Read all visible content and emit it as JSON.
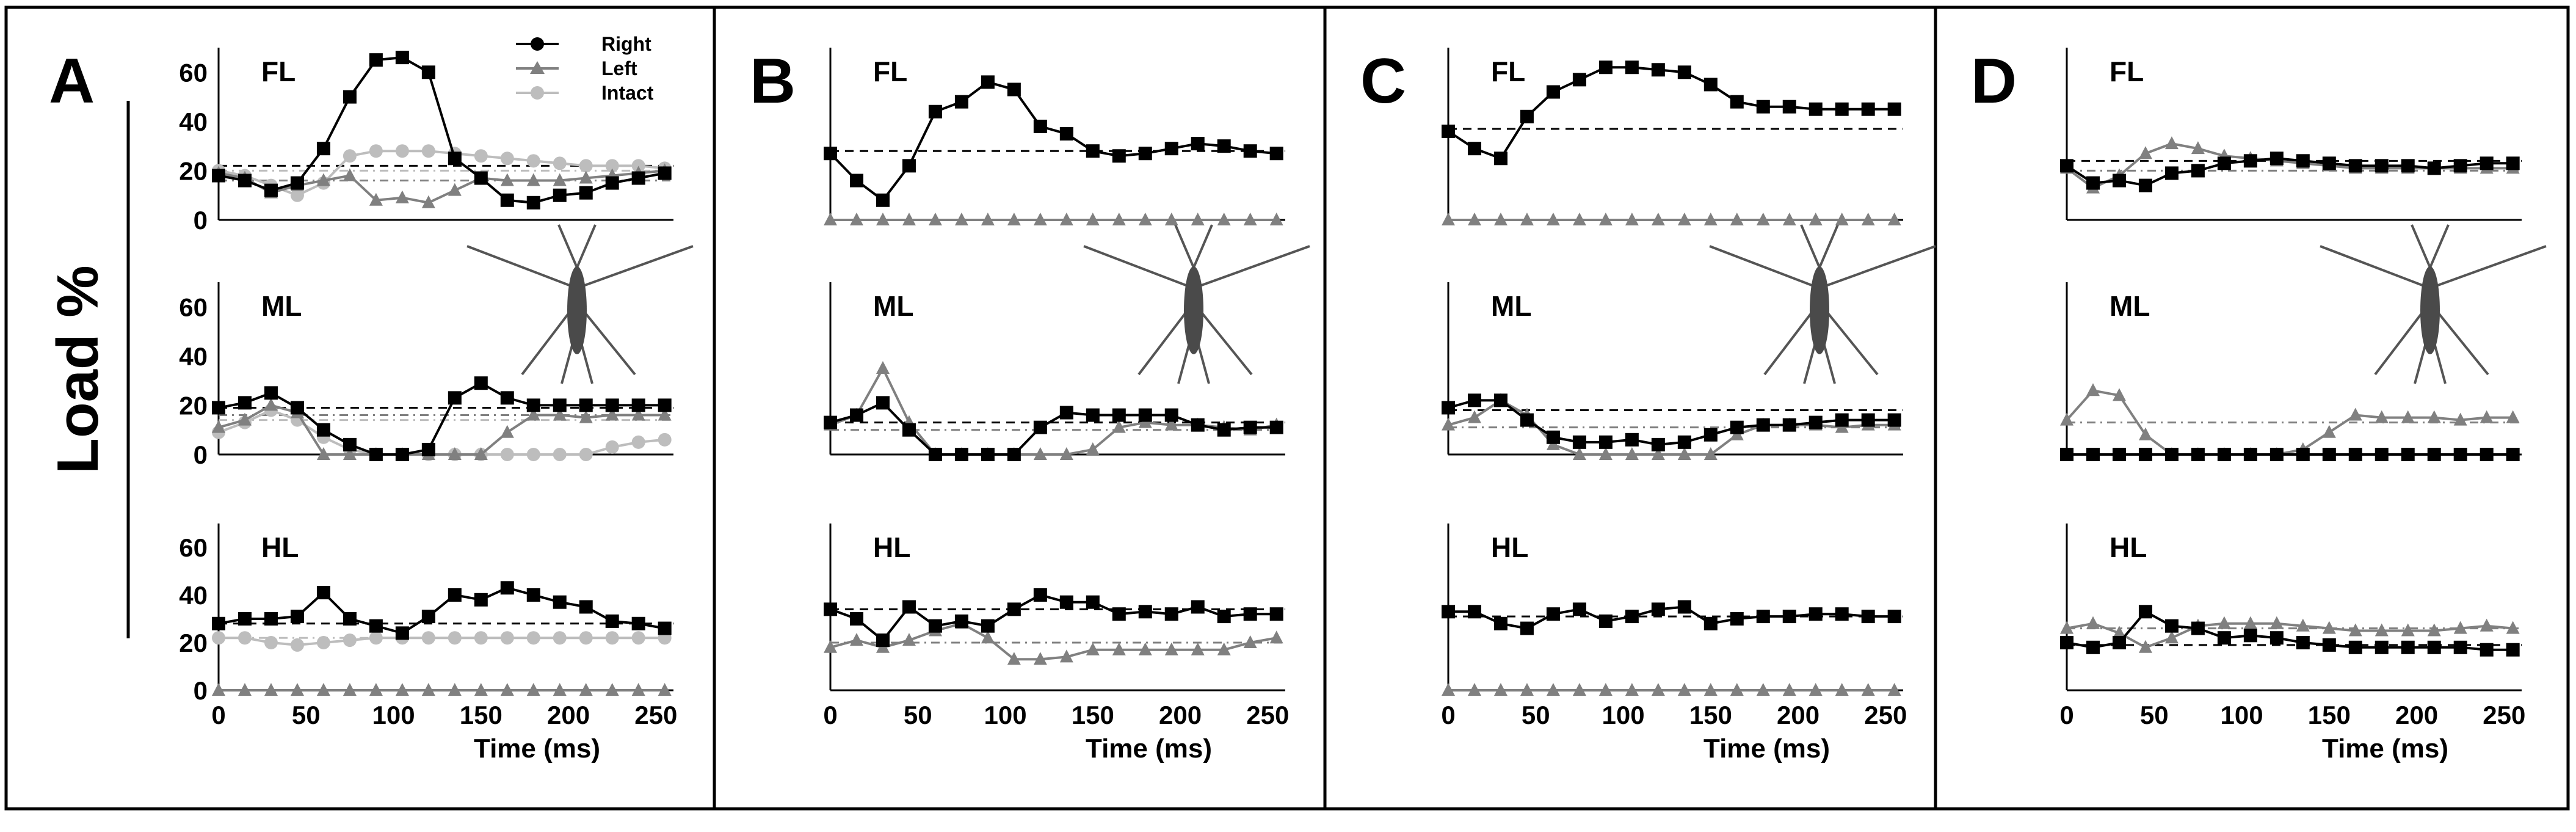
{
  "figure": {
    "ylabel": "Load %"
  },
  "legend": {
    "items": [
      {
        "name": "Right",
        "color": "#000000",
        "marker": "circle"
      },
      {
        "name": "Left",
        "color": "#808080",
        "marker": "triangle"
      },
      {
        "name": "Intact",
        "color": "#bdbdbd",
        "marker": "circle"
      }
    ]
  },
  "chart_data": [
    {
      "panel": "A",
      "type": "line",
      "xlabel": "Time (ms)",
      "xlim": [
        0,
        260
      ],
      "xticks": [
        0,
        50,
        100,
        150,
        200,
        250
      ],
      "ylim": [
        0,
        70
      ],
      "yticks": [
        0,
        20,
        40,
        60
      ],
      "y_tick_labels_shown": true,
      "x": [
        0,
        15,
        30,
        45,
        60,
        75,
        90,
        105,
        120,
        135,
        150,
        165,
        180,
        195,
        210,
        225,
        240,
        255
      ],
      "subplots": [
        {
          "leg": "FL",
          "series": [
            {
              "name": "Right",
              "values": [
                18,
                16,
                12,
                15,
                29,
                50,
                65,
                66,
                60,
                25,
                17,
                8,
                7,
                10,
                11,
                15,
                17,
                19
              ],
              "mean": 22
            },
            {
              "name": "Left",
              "values": [
                19,
                17,
                11,
                14,
                16,
                18,
                8,
                9,
                7,
                12,
                17,
                16,
                16,
                16,
                17,
                18,
                19,
                20
              ],
              "mean": 16
            },
            {
              "name": "Intact",
              "values": [
                20,
                18,
                14,
                10,
                15,
                26,
                28,
                28,
                28,
                27,
                26,
                25,
                24,
                23,
                22,
                22,
                22,
                21
              ],
              "mean": 20
            }
          ]
        },
        {
          "leg": "ML",
          "series": [
            {
              "name": "Right",
              "values": [
                19,
                21,
                25,
                19,
                10,
                4,
                0,
                0,
                2,
                23,
                29,
                23,
                20,
                20,
                20,
                20,
                20,
                20
              ],
              "mean": 19
            },
            {
              "name": "Left",
              "values": [
                11,
                14,
                20,
                17,
                0,
                0,
                0,
                0,
                0,
                0,
                0,
                9,
                16,
                16,
                15,
                16,
                16,
                16
              ],
              "mean": 16
            },
            {
              "name": "Intact",
              "values": [
                9,
                13,
                18,
                14,
                7,
                2,
                0,
                0,
                0,
                0,
                0,
                0,
                0,
                0,
                0,
                3,
                5,
                6
              ],
              "mean": 14
            }
          ]
        },
        {
          "leg": "HL",
          "series": [
            {
              "name": "Right",
              "values": [
                28,
                30,
                30,
                31,
                41,
                30,
                27,
                24,
                31,
                40,
                38,
                43,
                40,
                37,
                35,
                29,
                28,
                26
              ],
              "mean": 28
            },
            {
              "name": "Left",
              "values": [
                0,
                0,
                0,
                0,
                0,
                0,
                0,
                0,
                0,
                0,
                0,
                0,
                0,
                0,
                0,
                0,
                0,
                0
              ]
            },
            {
              "name": "Intact",
              "values": [
                22,
                22,
                20,
                19,
                20,
                21,
                22,
                22,
                22,
                22,
                22,
                22,
                22,
                22,
                22,
                22,
                22,
                22
              ],
              "mean": 22
            }
          ]
        }
      ]
    },
    {
      "panel": "B",
      "type": "line",
      "xlabel": "Time (ms)",
      "xlim": [
        0,
        260
      ],
      "xticks": [
        0,
        50,
        100,
        150,
        200,
        250
      ],
      "ylim": [
        0,
        70
      ],
      "y_tick_labels_shown": false,
      "x": [
        0,
        15,
        30,
        45,
        60,
        75,
        90,
        105,
        120,
        135,
        150,
        165,
        180,
        195,
        210,
        225,
        240,
        255
      ],
      "subplots": [
        {
          "leg": "FL",
          "series": [
            {
              "name": "Right",
              "values": [
                27,
                16,
                8,
                22,
                44,
                48,
                56,
                53,
                38,
                35,
                28,
                26,
                27,
                29,
                31,
                30,
                28,
                27
              ],
              "mean": 28
            },
            {
              "name": "Left",
              "values": [
                0,
                0,
                0,
                0,
                0,
                0,
                0,
                0,
                0,
                0,
                0,
                0,
                0,
                0,
                0,
                0,
                0,
                0
              ]
            }
          ]
        },
        {
          "leg": "ML",
          "series": [
            {
              "name": "Right",
              "values": [
                13,
                16,
                21,
                10,
                0,
                0,
                0,
                0,
                11,
                17,
                16,
                16,
                16,
                16,
                12,
                10,
                11,
                11
              ],
              "mean": 13
            },
            {
              "name": "Left",
              "values": [
                12,
                16,
                35,
                13,
                0,
                0,
                0,
                0,
                0,
                0,
                2,
                11,
                13,
                12,
                12,
                11,
                10,
                12
              ],
              "mean": 10
            }
          ]
        },
        {
          "leg": "HL",
          "series": [
            {
              "name": "Right",
              "values": [
                34,
                30,
                21,
                35,
                27,
                29,
                27,
                34,
                40,
                37,
                37,
                32,
                33,
                32,
                35,
                31,
                32,
                32
              ],
              "mean": 34
            },
            {
              "name": "Left",
              "values": [
                18,
                21,
                18,
                21,
                25,
                28,
                22,
                13,
                13,
                14,
                17,
                17,
                17,
                17,
                17,
                17,
                20,
                22
              ],
              "mean": 20
            }
          ]
        }
      ]
    },
    {
      "panel": "C",
      "type": "line",
      "xlabel": "Time (ms)",
      "xlim": [
        0,
        260
      ],
      "xticks": [
        0,
        50,
        100,
        150,
        200,
        250
      ],
      "ylim": [
        0,
        70
      ],
      "y_tick_labels_shown": false,
      "x": [
        0,
        15,
        30,
        45,
        60,
        75,
        90,
        105,
        120,
        135,
        150,
        165,
        180,
        195,
        210,
        225,
        240,
        255
      ],
      "subplots": [
        {
          "leg": "FL",
          "series": [
            {
              "name": "Right",
              "values": [
                36,
                29,
                25,
                42,
                52,
                57,
                62,
                62,
                61,
                60,
                55,
                48,
                46,
                46,
                45,
                45,
                45,
                45
              ],
              "mean": 37
            },
            {
              "name": "Left",
              "values": [
                0,
                0,
                0,
                0,
                0,
                0,
                0,
                0,
                0,
                0,
                0,
                0,
                0,
                0,
                0,
                0,
                0,
                0
              ]
            }
          ]
        },
        {
          "leg": "ML",
          "series": [
            {
              "name": "Right",
              "values": [
                19,
                22,
                22,
                14,
                7,
                5,
                5,
                6,
                4,
                5,
                8,
                11,
                12,
                12,
                13,
                14,
                14,
                14
              ],
              "mean": 18
            },
            {
              "name": "Left",
              "values": [
                12,
                15,
                22,
                16,
                4,
                0,
                0,
                0,
                0,
                0,
                0,
                8,
                12,
                12,
                12,
                11,
                12,
                12
              ],
              "mean": 11
            }
          ]
        },
        {
          "leg": "HL",
          "series": [
            {
              "name": "Right",
              "values": [
                33,
                33,
                28,
                26,
                32,
                34,
                29,
                31,
                34,
                35,
                28,
                30,
                31,
                31,
                32,
                32,
                31,
                31
              ],
              "mean": 31
            },
            {
              "name": "Left",
              "values": [
                0,
                0,
                0,
                0,
                0,
                0,
                0,
                0,
                0,
                0,
                0,
                0,
                0,
                0,
                0,
                0,
                0,
                0
              ]
            }
          ]
        }
      ]
    },
    {
      "panel": "D",
      "type": "line",
      "xlabel": "Time (ms)",
      "xlim": [
        0,
        260
      ],
      "xticks": [
        0,
        50,
        100,
        150,
        200,
        250
      ],
      "ylim": [
        0,
        70
      ],
      "y_tick_labels_shown": false,
      "x": [
        0,
        15,
        30,
        45,
        60,
        75,
        90,
        105,
        120,
        135,
        150,
        165,
        180,
        195,
        210,
        225,
        240,
        255
      ],
      "subplots": [
        {
          "leg": "FL",
          "series": [
            {
              "name": "Right",
              "values": [
                22,
                15,
                16,
                14,
                19,
                20,
                23,
                24,
                25,
                24,
                23,
                22,
                22,
                22,
                21,
                22,
                23,
                23
              ],
              "mean": 24
            },
            {
              "name": "Left",
              "values": [
                21,
                13,
                18,
                27,
                31,
                29,
                26,
                25,
                24,
                23,
                22,
                21,
                21,
                21,
                21,
                21,
                21,
                21
              ],
              "mean": 20
            }
          ]
        },
        {
          "leg": "ML",
          "series": [
            {
              "name": "Right",
              "values": [
                0,
                0,
                0,
                0,
                0,
                0,
                0,
                0,
                0,
                0,
                0,
                0,
                0,
                0,
                0,
                0,
                0,
                0
              ]
            },
            {
              "name": "Left",
              "values": [
                14,
                26,
                24,
                8,
                0,
                0,
                0,
                0,
                0,
                2,
                9,
                16,
                15,
                15,
                15,
                14,
                15,
                15
              ],
              "mean": 13
            }
          ]
        },
        {
          "leg": "HL",
          "series": [
            {
              "name": "Right",
              "values": [
                20,
                18,
                20,
                33,
                27,
                26,
                22,
                23,
                22,
                20,
                19,
                18,
                18,
                18,
                18,
                18,
                17,
                17
              ],
              "mean": 19
            },
            {
              "name": "Left",
              "values": [
                26,
                28,
                24,
                18,
                22,
                27,
                28,
                28,
                28,
                27,
                26,
                25,
                25,
                25,
                25,
                26,
                27,
                26
              ],
              "mean": 26
            }
          ]
        }
      ]
    }
  ]
}
